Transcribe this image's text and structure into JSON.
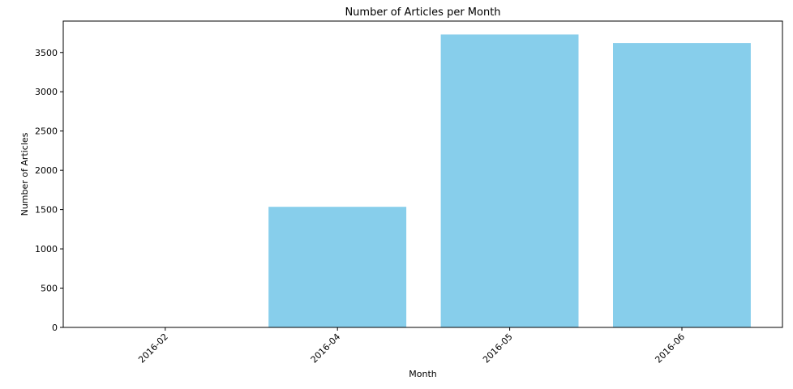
{
  "chart_data": {
    "type": "bar",
    "title": "Number of Articles per Month",
    "xlabel": "Month",
    "ylabel": "Number of Articles",
    "categories": [
      "2016-02",
      "2016-04",
      "2016-05",
      "2016-06"
    ],
    "values": [
      2,
      1535,
      3730,
      3620
    ],
    "ylim": [
      0,
      3900
    ],
    "yticks": [
      0,
      500,
      1000,
      1500,
      2000,
      2500,
      3000,
      3500
    ],
    "ytick_labels": [
      "0",
      "500",
      "1000",
      "1500",
      "2000",
      "2500",
      "3000",
      "3500"
    ],
    "grid": false,
    "bar_color": "#87ceeb",
    "xtick_rotation_deg": 45
  }
}
